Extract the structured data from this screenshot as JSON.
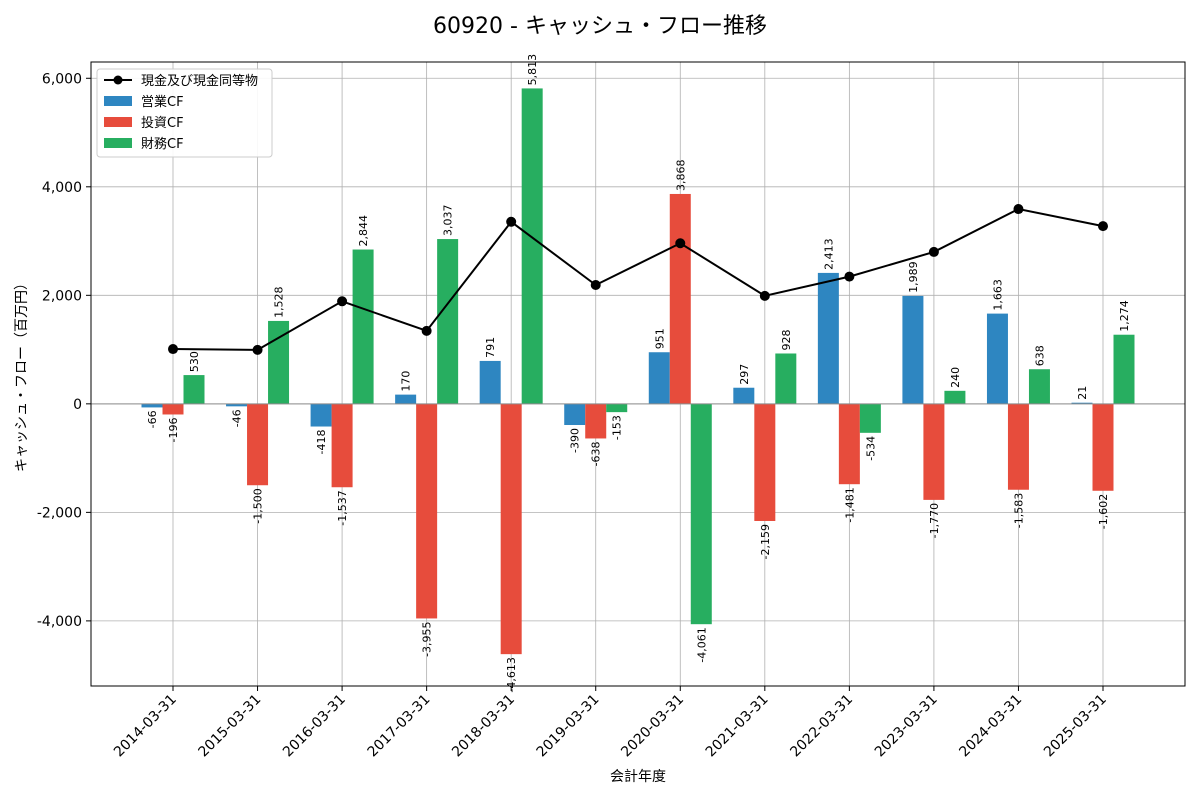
{
  "chart_data": {
    "type": "bar",
    "title": "60920 - キャッシュ・フロー推移",
    "xlabel": "会計年度",
    "ylabel": "キャッシュ・フロー（百万円）",
    "ylim": [
      -5200,
      6300
    ],
    "yticks": [
      -4000,
      -2000,
      0,
      2000,
      4000,
      6000
    ],
    "ytick_labels": [
      "-4,000",
      "-2,000",
      "0",
      "2,000",
      "4,000",
      "6,000"
    ],
    "grid": true,
    "legend_position": "top-left",
    "categories": [
      "2014-03-31",
      "2015-03-31",
      "2016-03-31",
      "2017-03-31",
      "2018-03-31",
      "2019-03-31",
      "2020-03-31",
      "2021-03-31",
      "2022-03-31",
      "2023-03-31",
      "2024-03-31",
      "2025-03-31"
    ],
    "series": [
      {
        "name": "営業CF",
        "kind": "bar",
        "color": "#2e86c1",
        "values": [
          -66,
          -46,
          -418,
          170,
          791,
          -390,
          951,
          297,
          2413,
          1989,
          1663,
          21
        ],
        "labels": [
          "-66",
          "-46",
          "-418",
          "170",
          "791",
          "-390",
          "951",
          "297",
          "2,413",
          "1,989",
          "1,663",
          "21"
        ]
      },
      {
        "name": "投資CF",
        "kind": "bar",
        "color": "#e74c3c",
        "values": [
          -196,
          -1500,
          -1537,
          -3955,
          -4613,
          -638,
          3868,
          -2159,
          -1481,
          -1770,
          -1583,
          -1602
        ],
        "labels": [
          "-196",
          "-1,500",
          "-1,537",
          "-3,955",
          "-4,613",
          "-638",
          "3,868",
          "-2,159",
          "-1,481",
          "-1,770",
          "-1,583",
          "-1,602"
        ]
      },
      {
        "name": "財務CF",
        "kind": "bar",
        "color": "#27ae60",
        "values": [
          530,
          1528,
          2844,
          3037,
          5813,
          -153,
          -4061,
          928,
          -534,
          240,
          638,
          1274
        ],
        "labels": [
          "530",
          "1,528",
          "2,844",
          "3,037",
          "5,813",
          "-153",
          "-4,061",
          "928",
          "-534",
          "240",
          "638",
          "1,274"
        ]
      },
      {
        "name": "現金及び現金同等物",
        "kind": "line",
        "color": "#000000",
        "values": [
          1010,
          995,
          1890,
          1345,
          3355,
          2190,
          2960,
          1990,
          2345,
          2800,
          3590,
          3275
        ]
      }
    ]
  }
}
